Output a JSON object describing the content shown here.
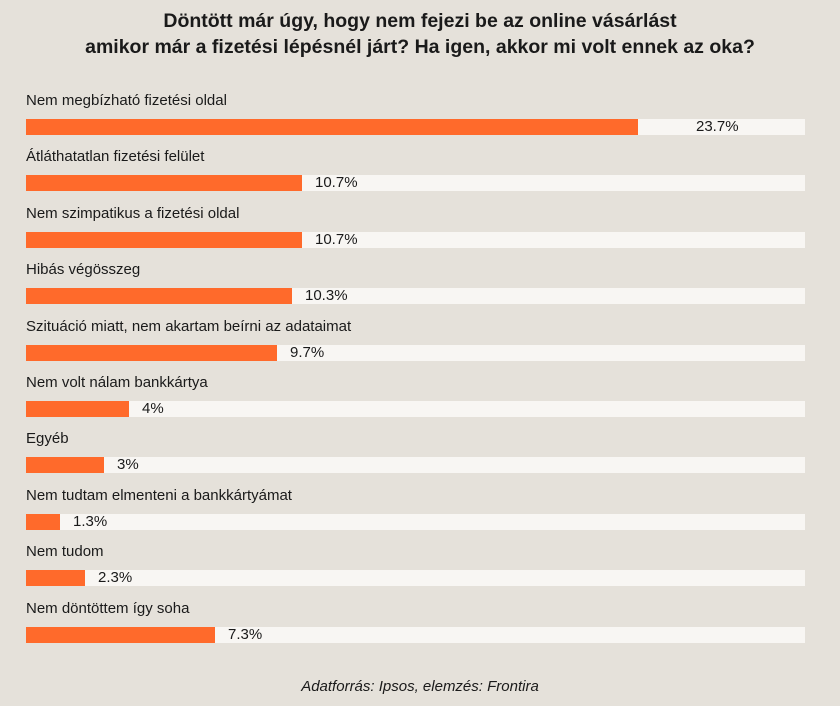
{
  "colors": {
    "background": "#e5e1da",
    "bar": "#ff6a2b",
    "track": "#f8f6f3",
    "text": "#1a1a1a"
  },
  "source": "Adatforrás: Ipsos, elemzés: Frontira",
  "chart_data": {
    "type": "bar",
    "orientation": "horizontal",
    "title_lines": [
      "Döntött már úgy, hogy nem fejezi be az online vásárlást",
      "amikor már a fizetési lépésnél járt? Ha igen, akkor mi volt ennek az oka?"
    ],
    "categories": [
      "Nem megbízható fizetési oldal",
      "Átláthatatlan fizetési felület",
      "Nem szimpatikus a fizetési oldal",
      "Hibás végösszeg",
      "Szituáció miatt, nem akartam beírni az adataimat",
      "Nem volt nálam bankkártya",
      "Egyéb",
      "Nem tudtam elmenteni a bankkártyámat",
      "Nem tudom",
      "Nem döntöttem így soha"
    ],
    "values": [
      23.7,
      10.7,
      10.7,
      10.3,
      9.7,
      4,
      3,
      1.3,
      2.3,
      7.3
    ],
    "value_labels": [
      "23.7%",
      "10.7%",
      "10.7%",
      "10.3%",
      "9.7%",
      "4%",
      "3%",
      "1.3%",
      "2.3%",
      "7.3%"
    ],
    "unit": "%",
    "xlim": [
      0,
      30.15
    ],
    "grid": false,
    "legend": "none"
  }
}
